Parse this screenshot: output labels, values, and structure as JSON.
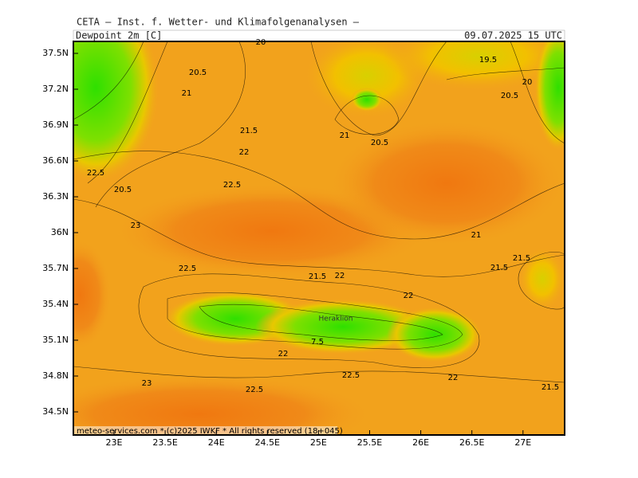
{
  "header": "CETA — Inst. f. Wetter- und Klimafolgenanalysen —",
  "title": "Dewpoint 2m [C]",
  "datetime": "09.07.2025 15 UTC",
  "footer": "meteo-services.com * (c)2025 IWKF * All rights reserved (18+045)",
  "lat_labels": [
    "37.5N",
    "37.2N",
    "36.9N",
    "36.6N",
    "36.3N",
    "36N",
    "35.7N",
    "35.4N",
    "35.1N",
    "34.8N",
    "34.5N"
  ],
  "lon_labels": [
    "23E",
    "23.5E",
    "24E",
    "24.5E",
    "25E",
    "25.5E",
    "26E",
    "26.5E",
    "27E"
  ],
  "contour_labels": [
    "20.5",
    "21",
    "21.5",
    "22",
    "22.5",
    "23",
    "21",
    "21.5",
    "21.5",
    "22",
    "21.5",
    "22",
    "22.5",
    "22.5",
    "23",
    "21.5",
    "22",
    "22",
    "20.5",
    "20",
    "20.5",
    "19.5",
    "20",
    "22.5",
    "7.5",
    "21",
    "20.5",
    "22.5"
  ],
  "places": [
    "Heraklion"
  ]
}
